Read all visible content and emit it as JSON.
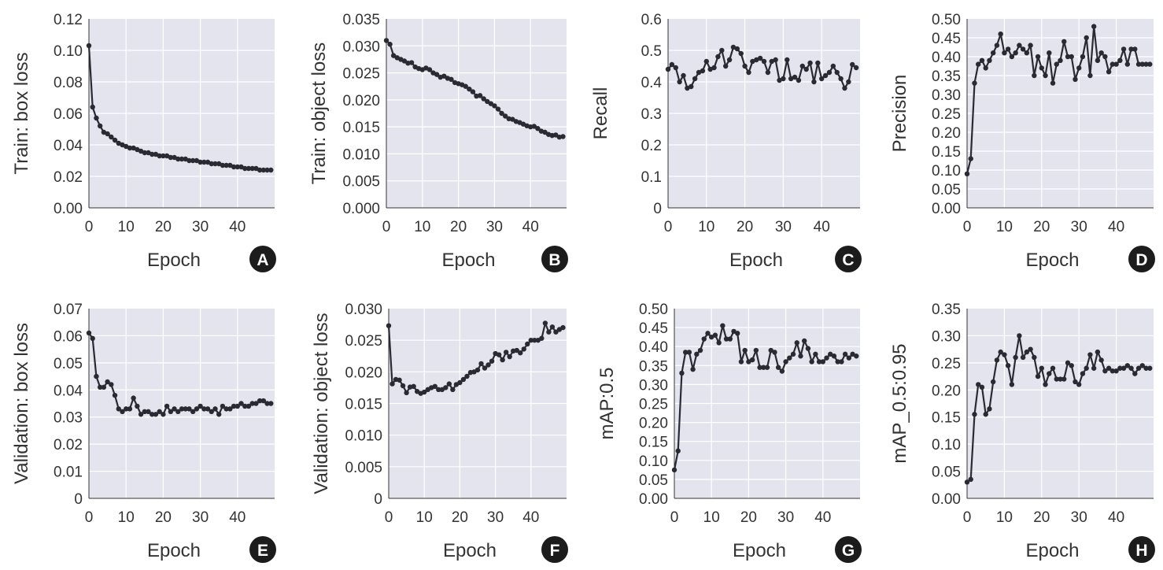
{
  "chart_data": [
    {
      "panel": "A",
      "type": "line",
      "xlabel": "Epoch",
      "ylabel": "Train: box loss",
      "xlim": [
        0,
        50
      ],
      "ylim": [
        0,
        0.12
      ],
      "xticks": [
        "0",
        "10",
        "20",
        "30",
        "40"
      ],
      "yticks": [
        "0.00",
        "0.02",
        "0.04",
        "0.06",
        "0.08",
        "0.10",
        "0.12"
      ],
      "grid": true,
      "x": [
        0,
        1,
        2,
        3,
        4,
        5,
        6,
        7,
        8,
        9,
        10,
        11,
        12,
        13,
        14,
        15,
        16,
        17,
        18,
        19,
        20,
        21,
        22,
        23,
        24,
        25,
        26,
        27,
        28,
        29,
        30,
        31,
        32,
        33,
        34,
        35,
        36,
        37,
        38,
        39,
        40,
        41,
        42,
        43,
        44,
        45,
        46,
        47,
        48,
        49
      ],
      "values": [
        0.103,
        0.064,
        0.057,
        0.052,
        0.048,
        0.047,
        0.045,
        0.043,
        0.041,
        0.04,
        0.039,
        0.038,
        0.038,
        0.037,
        0.036,
        0.035,
        0.035,
        0.034,
        0.034,
        0.033,
        0.033,
        0.033,
        0.032,
        0.032,
        0.031,
        0.031,
        0.031,
        0.03,
        0.03,
        0.03,
        0.029,
        0.029,
        0.029,
        0.028,
        0.028,
        0.028,
        0.027,
        0.027,
        0.027,
        0.026,
        0.026,
        0.026,
        0.025,
        0.025,
        0.025,
        0.025,
        0.024,
        0.024,
        0.024,
        0.024
      ]
    },
    {
      "panel": "B",
      "type": "line",
      "xlabel": "Epoch",
      "ylabel": "Train: object loss",
      "xlim": [
        0,
        50
      ],
      "ylim": [
        0,
        0.035
      ],
      "xticks": [
        "0",
        "10",
        "20",
        "30",
        "40"
      ],
      "yticks": [
        "0.000",
        "0.005",
        "0.010",
        "0.015",
        "0.020",
        "0.025",
        "0.030",
        "0.035"
      ],
      "grid": true,
      "x": [
        0,
        1,
        2,
        3,
        4,
        5,
        6,
        7,
        8,
        9,
        10,
        11,
        12,
        13,
        14,
        15,
        16,
        17,
        18,
        19,
        20,
        21,
        22,
        23,
        24,
        25,
        26,
        27,
        28,
        29,
        30,
        31,
        32,
        33,
        34,
        35,
        36,
        37,
        38,
        39,
        40,
        41,
        42,
        43,
        44,
        45,
        46,
        47,
        48,
        49
      ],
      "values": [
        0.031,
        0.0303,
        0.0282,
        0.0278,
        0.0275,
        0.0272,
        0.0268,
        0.0269,
        0.0261,
        0.0258,
        0.0256,
        0.0259,
        0.0256,
        0.025,
        0.0247,
        0.0242,
        0.0244,
        0.024,
        0.0238,
        0.0232,
        0.023,
        0.0228,
        0.0225,
        0.022,
        0.0215,
        0.0207,
        0.0208,
        0.0202,
        0.0197,
        0.0193,
        0.0189,
        0.0183,
        0.0175,
        0.017,
        0.0165,
        0.0164,
        0.016,
        0.0158,
        0.0155,
        0.0152,
        0.015,
        0.0151,
        0.0147,
        0.0142,
        0.014,
        0.0136,
        0.0134,
        0.0135,
        0.0131,
        0.0132
      ]
    },
    {
      "panel": "C",
      "type": "line",
      "xlabel": "Epoch",
      "ylabel": "Recall",
      "xlim": [
        0,
        50
      ],
      "ylim": [
        0,
        0.6
      ],
      "xticks": [
        "0",
        "10",
        "20",
        "30",
        "40"
      ],
      "yticks": [
        "0",
        "0.1",
        "0.2",
        "0.3",
        "0.4",
        "0.5",
        "0.6"
      ],
      "grid": true,
      "x": [
        0,
        1,
        2,
        3,
        4,
        5,
        6,
        7,
        8,
        9,
        10,
        11,
        12,
        13,
        14,
        15,
        16,
        17,
        18,
        19,
        20,
        21,
        22,
        23,
        24,
        25,
        26,
        27,
        28,
        29,
        30,
        31,
        32,
        33,
        34,
        35,
        36,
        37,
        38,
        39,
        40,
        41,
        42,
        43,
        44,
        45,
        46,
        47,
        48,
        49
      ],
      "values": [
        0.44,
        0.455,
        0.445,
        0.4,
        0.42,
        0.38,
        0.385,
        0.41,
        0.43,
        0.435,
        0.465,
        0.44,
        0.445,
        0.48,
        0.5,
        0.45,
        0.47,
        0.51,
        0.505,
        0.49,
        0.45,
        0.43,
        0.465,
        0.47,
        0.475,
        0.465,
        0.43,
        0.465,
        0.47,
        0.405,
        0.41,
        0.47,
        0.41,
        0.415,
        0.405,
        0.45,
        0.44,
        0.46,
        0.4,
        0.46,
        0.41,
        0.42,
        0.43,
        0.45,
        0.43,
        0.41,
        0.38,
        0.4,
        0.455,
        0.445
      ]
    },
    {
      "panel": "D",
      "type": "line",
      "xlabel": "Epoch",
      "ylabel": "Precision",
      "xlim": [
        0,
        50
      ],
      "ylim": [
        0,
        0.5
      ],
      "xticks": [
        "0",
        "10",
        "20",
        "30",
        "40"
      ],
      "yticks": [
        "0.00",
        "0.05",
        "0.10",
        "0.15",
        "0.20",
        "0.25",
        "0.30",
        "0.35",
        "0.40",
        "0.45",
        "0.50"
      ],
      "grid": true,
      "x": [
        0,
        1,
        2,
        3,
        4,
        5,
        6,
        7,
        8,
        9,
        10,
        11,
        12,
        13,
        14,
        15,
        16,
        17,
        18,
        19,
        20,
        21,
        22,
        23,
        24,
        25,
        26,
        27,
        28,
        29,
        30,
        31,
        32,
        33,
        34,
        35,
        36,
        37,
        38,
        39,
        40,
        41,
        42,
        43,
        44,
        45,
        46,
        47,
        48,
        49
      ],
      "values": [
        0.09,
        0.13,
        0.33,
        0.38,
        0.39,
        0.37,
        0.39,
        0.41,
        0.43,
        0.46,
        0.41,
        0.42,
        0.4,
        0.41,
        0.43,
        0.42,
        0.41,
        0.43,
        0.35,
        0.4,
        0.37,
        0.35,
        0.41,
        0.33,
        0.38,
        0.39,
        0.44,
        0.4,
        0.4,
        0.34,
        0.37,
        0.4,
        0.45,
        0.35,
        0.48,
        0.39,
        0.41,
        0.4,
        0.36,
        0.38,
        0.38,
        0.39,
        0.42,
        0.38,
        0.42,
        0.42,
        0.38,
        0.38,
        0.38,
        0.38
      ]
    },
    {
      "panel": "E",
      "type": "line",
      "xlabel": "Epoch",
      "ylabel": "Validation: box loss",
      "xlim": [
        0,
        50
      ],
      "ylim": [
        0,
        0.07
      ],
      "xticks": [
        "0",
        "10",
        "20",
        "30",
        "40"
      ],
      "yticks": [
        "0",
        "0.01",
        "0.02",
        "0.03",
        "0.04",
        "0.05",
        "0.06",
        "0.07"
      ],
      "grid": true,
      "x": [
        0,
        1,
        2,
        3,
        4,
        5,
        6,
        7,
        8,
        9,
        10,
        11,
        12,
        13,
        14,
        15,
        16,
        17,
        18,
        19,
        20,
        21,
        22,
        23,
        24,
        25,
        26,
        27,
        28,
        29,
        30,
        31,
        32,
        33,
        34,
        35,
        36,
        37,
        38,
        39,
        40,
        41,
        42,
        43,
        44,
        45,
        46,
        47,
        48,
        49
      ],
      "values": [
        0.061,
        0.059,
        0.045,
        0.041,
        0.041,
        0.043,
        0.042,
        0.038,
        0.033,
        0.032,
        0.033,
        0.033,
        0.037,
        0.034,
        0.031,
        0.032,
        0.032,
        0.031,
        0.031,
        0.032,
        0.031,
        0.034,
        0.032,
        0.033,
        0.032,
        0.033,
        0.033,
        0.033,
        0.032,
        0.033,
        0.034,
        0.033,
        0.033,
        0.032,
        0.033,
        0.031,
        0.034,
        0.033,
        0.033,
        0.034,
        0.034,
        0.035,
        0.034,
        0.034,
        0.035,
        0.035,
        0.036,
        0.036,
        0.035,
        0.035
      ]
    },
    {
      "panel": "F",
      "type": "line",
      "xlabel": "Epoch",
      "ylabel": "Validation: object loss",
      "xlim": [
        0,
        50
      ],
      "ylim": [
        0,
        0.03
      ],
      "xticks": [
        "0",
        "10",
        "20",
        "30",
        "40"
      ],
      "yticks": [
        "0",
        "0.005",
        "0.010",
        "0.015",
        "0.020",
        "0.025",
        "0.030"
      ],
      "grid": true,
      "x": [
        0,
        1,
        2,
        3,
        4,
        5,
        6,
        7,
        8,
        9,
        10,
        11,
        12,
        13,
        14,
        15,
        16,
        17,
        18,
        19,
        20,
        21,
        22,
        23,
        24,
        25,
        26,
        27,
        28,
        29,
        30,
        31,
        32,
        33,
        34,
        35,
        36,
        37,
        38,
        39,
        40,
        41,
        42,
        43,
        44,
        45,
        46,
        47,
        48,
        49
      ],
      "values": [
        0.0273,
        0.0181,
        0.0188,
        0.0187,
        0.0178,
        0.0167,
        0.0176,
        0.0177,
        0.0169,
        0.0166,
        0.0168,
        0.0172,
        0.0175,
        0.0177,
        0.0172,
        0.0172,
        0.0175,
        0.0181,
        0.0172,
        0.018,
        0.0183,
        0.0188,
        0.0193,
        0.0199,
        0.02,
        0.0203,
        0.0213,
        0.0206,
        0.0211,
        0.0217,
        0.0229,
        0.0227,
        0.0219,
        0.0231,
        0.0224,
        0.0233,
        0.0234,
        0.023,
        0.0236,
        0.0244,
        0.025,
        0.025,
        0.025,
        0.0253,
        0.0277,
        0.0263,
        0.0271,
        0.0263,
        0.0267,
        0.027
      ]
    },
    {
      "panel": "G",
      "type": "line",
      "xlabel": "Epoch",
      "ylabel": "mAP:0.5",
      "xlim": [
        0,
        50
      ],
      "ylim": [
        0,
        0.5
      ],
      "xticks": [
        "0",
        "10",
        "20",
        "30",
        "40"
      ],
      "yticks": [
        "0.00",
        "0.05",
        "0.10",
        "0.15",
        "0.20",
        "0.25",
        "0.30",
        "0.35",
        "0.40",
        "0.45",
        "0.50"
      ],
      "grid": true,
      "x": [
        0,
        1,
        2,
        3,
        4,
        5,
        6,
        7,
        8,
        9,
        10,
        11,
        12,
        13,
        14,
        15,
        16,
        17,
        18,
        19,
        20,
        21,
        22,
        23,
        24,
        25,
        26,
        27,
        28,
        29,
        30,
        31,
        32,
        33,
        34,
        35,
        36,
        37,
        38,
        39,
        40,
        41,
        42,
        43,
        44,
        45,
        46,
        47,
        48,
        49
      ],
      "values": [
        0.075,
        0.125,
        0.33,
        0.385,
        0.385,
        0.34,
        0.38,
        0.39,
        0.42,
        0.435,
        0.425,
        0.43,
        0.41,
        0.455,
        0.42,
        0.42,
        0.44,
        0.435,
        0.36,
        0.39,
        0.36,
        0.365,
        0.39,
        0.345,
        0.345,
        0.345,
        0.39,
        0.385,
        0.345,
        0.335,
        0.36,
        0.37,
        0.38,
        0.41,
        0.375,
        0.415,
        0.395,
        0.36,
        0.38,
        0.36,
        0.36,
        0.37,
        0.38,
        0.375,
        0.36,
        0.36,
        0.38,
        0.37,
        0.38,
        0.375
      ]
    },
    {
      "panel": "H",
      "type": "line",
      "xlabel": "Epoch",
      "ylabel": "mAP_0.5:0.95",
      "xlim": [
        0,
        50
      ],
      "ylim": [
        0,
        0.35
      ],
      "xticks": [
        "0",
        "10",
        "20",
        "30",
        "40"
      ],
      "yticks": [
        "0.00",
        "0.05",
        "0.10",
        "0.15",
        "0.20",
        "0.25",
        "0.30",
        "0.35"
      ],
      "grid": true,
      "x": [
        0,
        1,
        2,
        3,
        4,
        5,
        6,
        7,
        8,
        9,
        10,
        11,
        12,
        13,
        14,
        15,
        16,
        17,
        18,
        19,
        20,
        21,
        22,
        23,
        24,
        25,
        26,
        27,
        28,
        29,
        30,
        31,
        32,
        33,
        34,
        35,
        36,
        37,
        38,
        39,
        40,
        41,
        42,
        43,
        44,
        45,
        46,
        47,
        48,
        49
      ],
      "values": [
        0.03,
        0.035,
        0.155,
        0.21,
        0.205,
        0.155,
        0.165,
        0.215,
        0.255,
        0.27,
        0.265,
        0.245,
        0.21,
        0.26,
        0.3,
        0.26,
        0.27,
        0.275,
        0.26,
        0.225,
        0.24,
        0.21,
        0.23,
        0.24,
        0.22,
        0.22,
        0.22,
        0.25,
        0.245,
        0.215,
        0.21,
        0.23,
        0.24,
        0.265,
        0.24,
        0.27,
        0.255,
        0.235,
        0.24,
        0.235,
        0.235,
        0.24,
        0.24,
        0.245,
        0.24,
        0.23,
        0.24,
        0.245,
        0.24,
        0.24
      ]
    }
  ]
}
